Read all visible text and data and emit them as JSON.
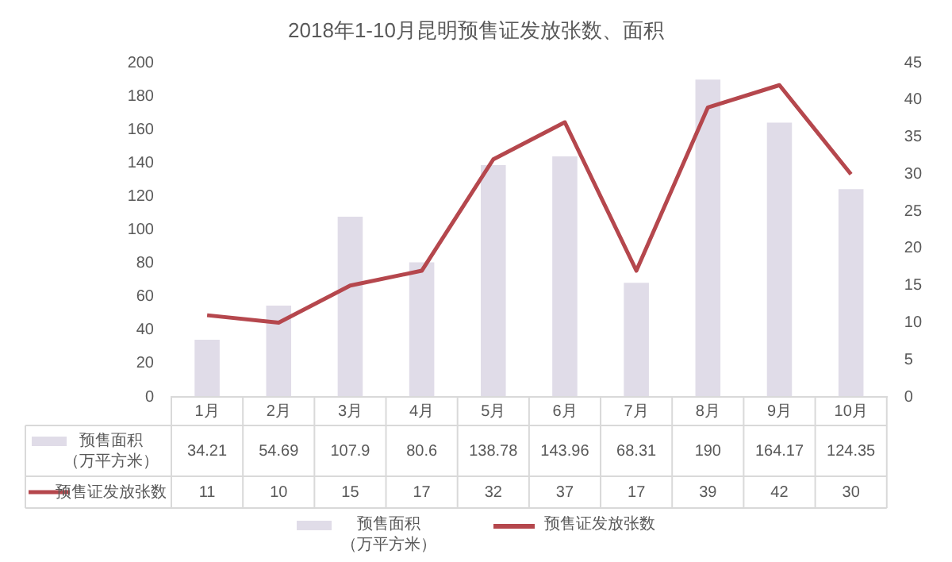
{
  "chart_data": {
    "type": "bar",
    "title": "2018年1-10月昆明预售证发放张数、面积",
    "categories": [
      "1月",
      "2月",
      "3月",
      "4月",
      "5月",
      "6月",
      "7月",
      "8月",
      "9月",
      "10月"
    ],
    "series": [
      {
        "name": "预售面积（万平方米）",
        "color": "#e0dce8",
        "values": [
          34.21,
          54.69,
          107.9,
          80.6,
          138.78,
          143.96,
          68.31,
          190,
          164.17,
          124.35
        ]
      },
      {
        "name": "预售证发放张数",
        "type": "line",
        "axis": "y2",
        "color": "#b5474d",
        "values": [
          11,
          10,
          15,
          17,
          32,
          37,
          17,
          39,
          42,
          30
        ]
      }
    ],
    "ylim": [
      0,
      200
    ],
    "yticks": [
      0,
      20,
      40,
      60,
      80,
      100,
      120,
      140,
      160,
      180,
      200
    ],
    "y2lim": [
      0,
      45
    ],
    "y2ticks": [
      0,
      5,
      10,
      15,
      20,
      25,
      30,
      35,
      40,
      45
    ],
    "data_labels": true,
    "legend": "bottom",
    "marker": "none",
    "line_style": "solid"
  }
}
